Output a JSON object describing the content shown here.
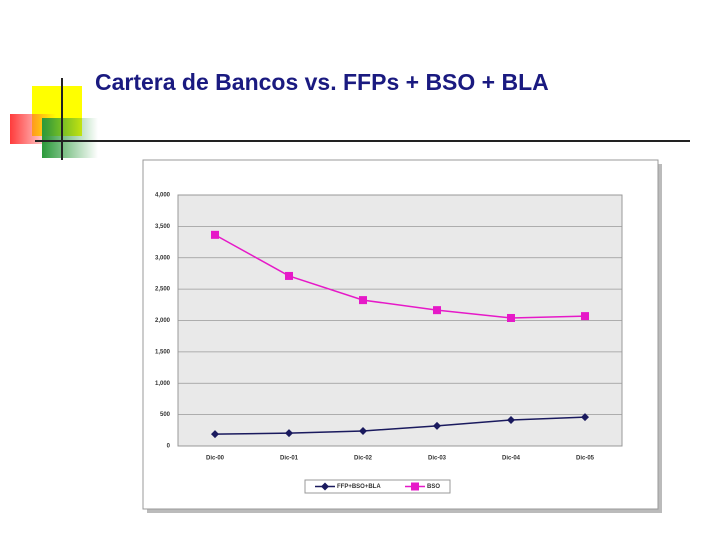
{
  "title": "Cartera de Bancos vs.  FFPs + BSO + BLA",
  "chart_data": {
    "type": "line",
    "categories": [
      "Dic-00",
      "Dic-01",
      "Dic-02",
      "Dic-03",
      "Dic-04",
      "Dic-05"
    ],
    "series": [
      {
        "name": "FFP+BSO+BLA",
        "color": "#1a1a5e",
        "marker": "diamond",
        "values": [
          190,
          205,
          240,
          320,
          415,
          460
        ]
      },
      {
        "name": "BSO",
        "color": "#e619c8",
        "marker": "square",
        "values": [
          3365,
          2710,
          2325,
          2165,
          2040,
          2070
        ]
      }
    ],
    "ylim": [
      0,
      4000
    ],
    "yticks": [
      0,
      500,
      {
        "value": 1000,
        "label": "1,000"
      },
      {
        "value": 1500,
        "label": "1,500"
      },
      {
        "value": 2000,
        "label": "2,000"
      },
      {
        "value": 2500,
        "label": "2,500"
      },
      {
        "value": 3000,
        "label": "3,000"
      },
      {
        "value": 3500,
        "label": "3,500"
      },
      {
        "value": 4000,
        "label": "4,000"
      }
    ],
    "grid": true,
    "legend": "bottom"
  }
}
